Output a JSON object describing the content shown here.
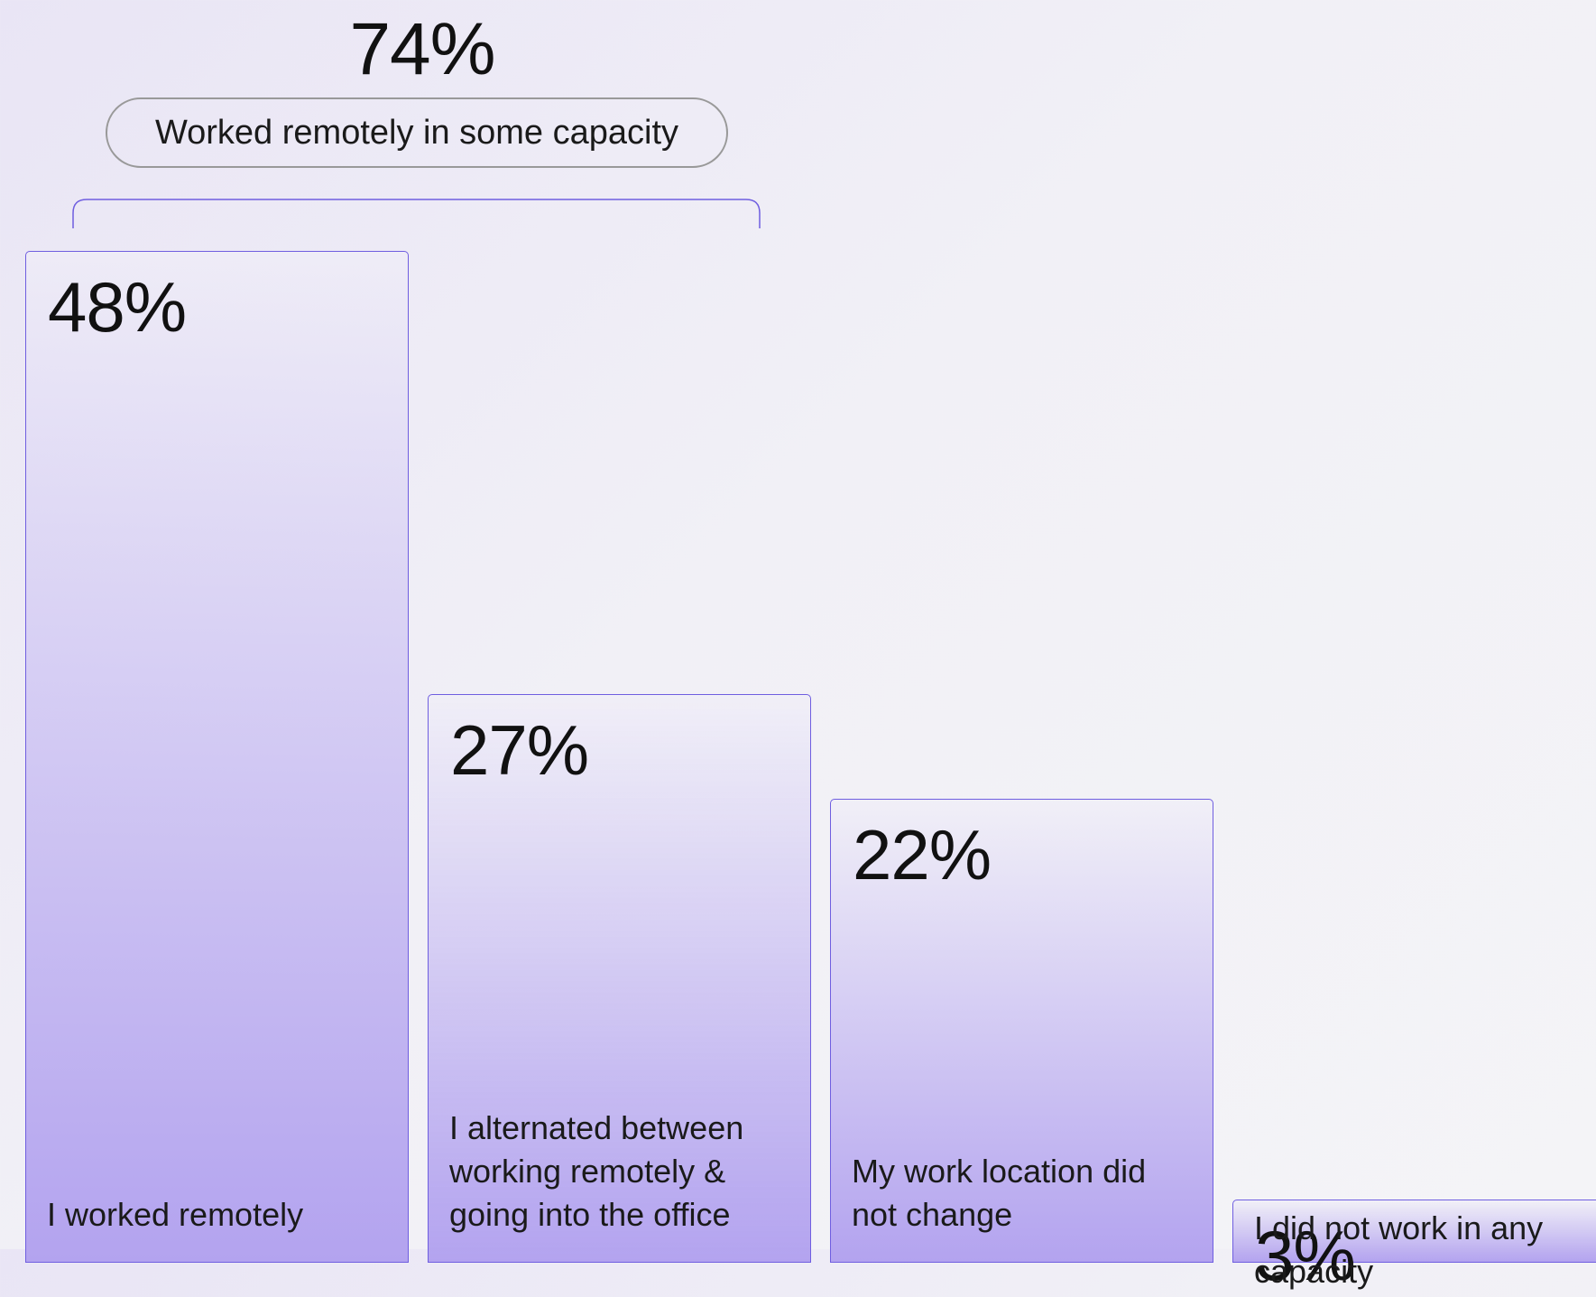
{
  "chart_data": {
    "type": "bar",
    "categories": [
      "I worked remotely",
      "I alternated between working remotely & going into the office",
      "My work location did not change",
      "I did not work in any capacity"
    ],
    "values": [
      48,
      27,
      22,
      3
    ],
    "value_labels": [
      "48%",
      "27%",
      "22%",
      "3%"
    ],
    "color": "#b3a3ef",
    "annotation": {
      "label": "74%",
      "text": "Worked remotely in some capacity"
    }
  }
}
